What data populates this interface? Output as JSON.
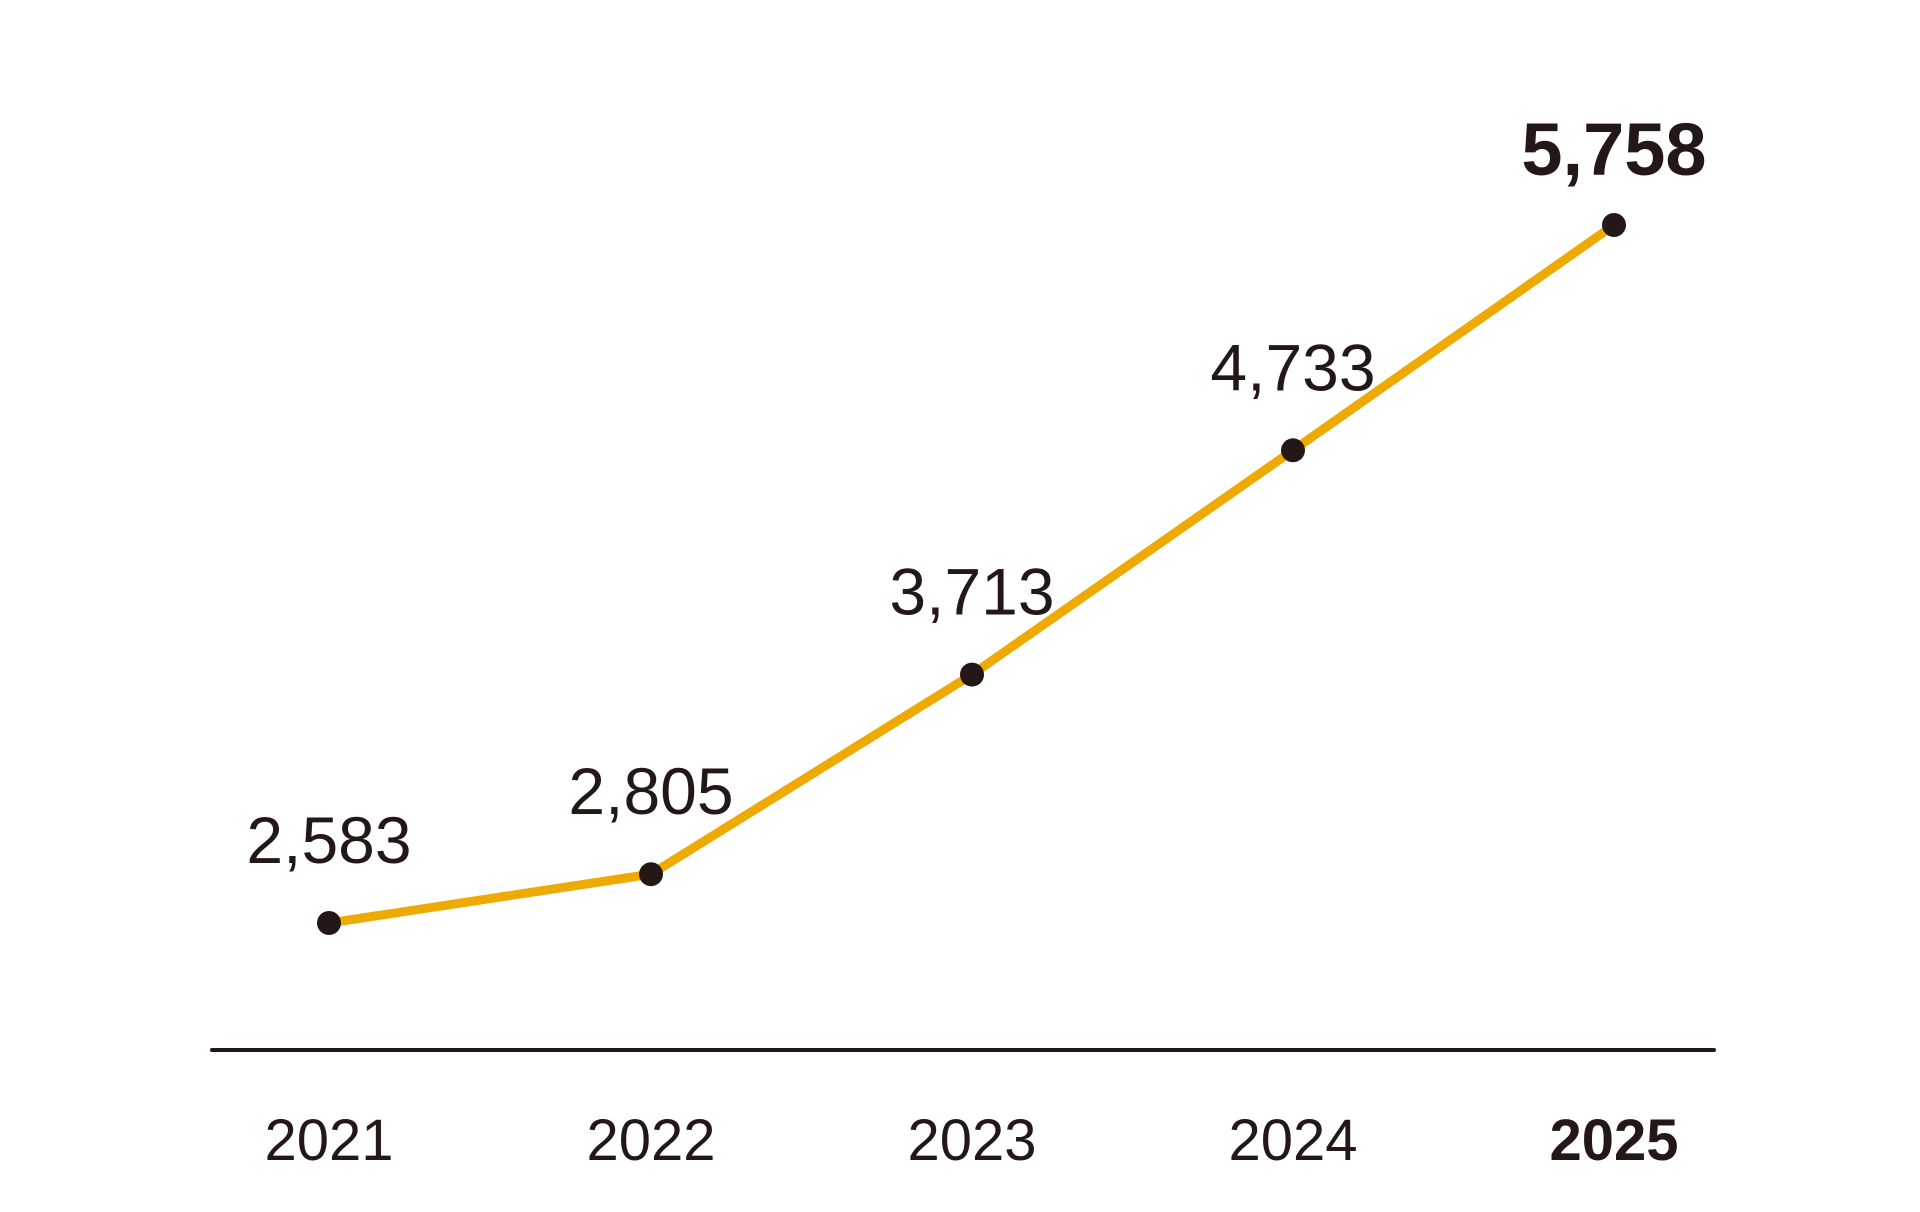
{
  "chart_data": {
    "type": "line",
    "categories": [
      "2021",
      "2022",
      "2023",
      "2024",
      "2025"
    ],
    "values": [
      2583,
      2805,
      3713,
      4733,
      5758
    ],
    "value_labels": [
      "2,583",
      "2,805",
      "3,713",
      "4,733",
      "5,758"
    ],
    "highlight_category": "2025",
    "title": "",
    "xlabel": "",
    "ylabel": "",
    "grid": false,
    "legend": "none",
    "colors": {
      "line": "#EEAA00",
      "marker": "#231815",
      "axis": "#231815",
      "text": "#231815"
    }
  }
}
